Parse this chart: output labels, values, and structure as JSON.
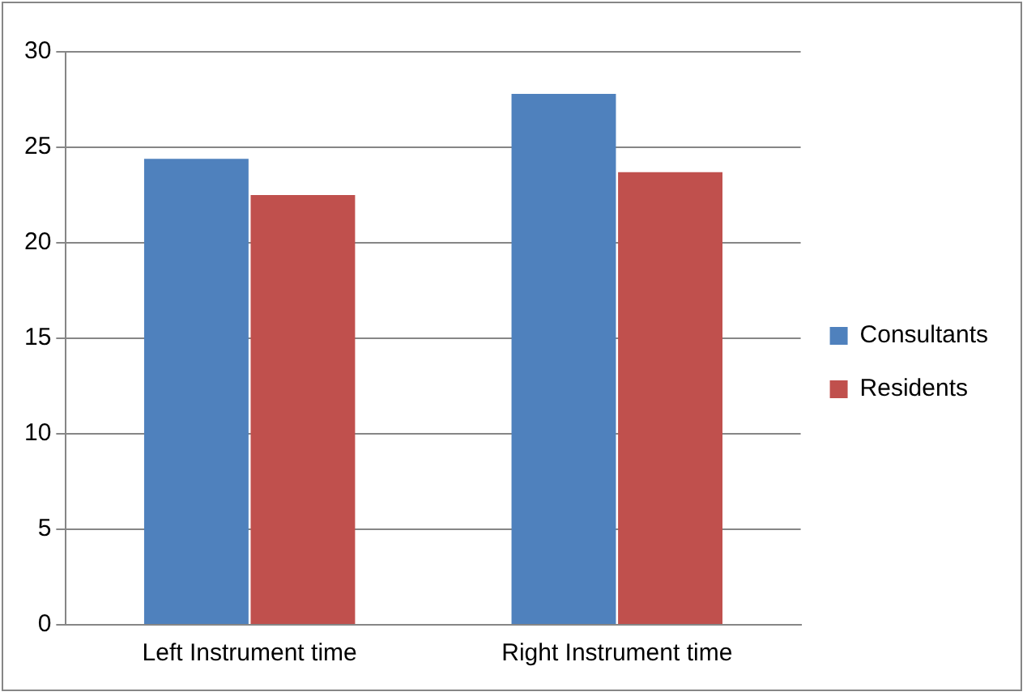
{
  "chart_data": {
    "type": "bar",
    "categories": [
      "Left Instrument time",
      "Right Instrument time"
    ],
    "series": [
      {
        "name": "Consultants",
        "color": "#4f81bd",
        "values": [
          24.4,
          27.8
        ]
      },
      {
        "name": "Residents",
        "color": "#c0504d",
        "values": [
          22.5,
          23.7
        ]
      }
    ],
    "ylim": [
      0,
      30
    ],
    "yticks": [
      0,
      5,
      10,
      15,
      20,
      25,
      30
    ],
    "grid": "y",
    "legend": "right"
  }
}
